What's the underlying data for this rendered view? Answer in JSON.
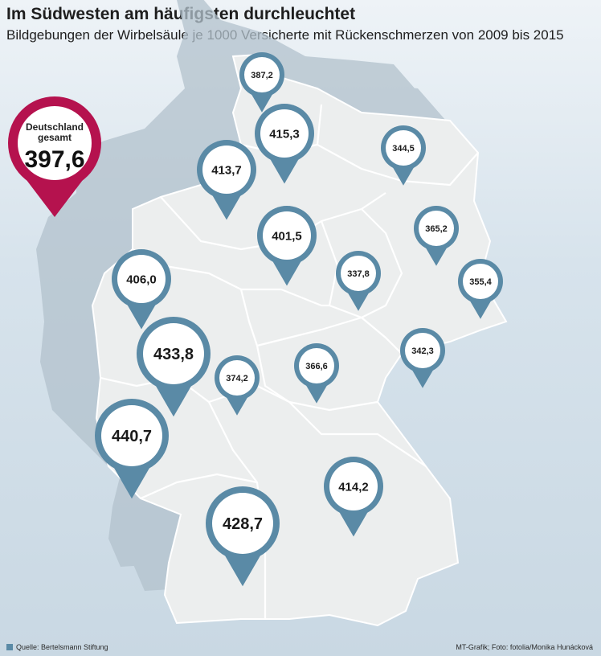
{
  "title": "Im Südwesten am häufigsten durchleuchtet",
  "subtitle": "Bildgebungen der Wirbelsäule je 1000 Versicherte mit Rückenschmerzen von 2009 bis 2015",
  "national": {
    "label_line1": "Deutschland",
    "label_line2": "gesamt",
    "value": "397,6",
    "color": "#b5124e"
  },
  "pin_color": "#5a8aa6",
  "map_fill": "#eceeee",
  "markers": [
    {
      "region": "Schleswig-Holstein",
      "value": "387,2",
      "size": "small"
    },
    {
      "region": "Hamburg",
      "value": "415,3",
      "size": "medium"
    },
    {
      "region": "Mecklenburg-Vorpommern",
      "value": "344,5",
      "size": "small"
    },
    {
      "region": "Bremen",
      "value": "413,7",
      "size": "medium"
    },
    {
      "region": "Niedersachsen",
      "value": "401,5",
      "size": "medium"
    },
    {
      "region": "Berlin",
      "value": "365,2",
      "size": "small"
    },
    {
      "region": "Sachsen-Anhalt",
      "value": "337,8",
      "size": "small"
    },
    {
      "region": "Brandenburg",
      "value": "355,4",
      "size": "small"
    },
    {
      "region": "Nordrhein-Westfalen",
      "value": "406,0",
      "size": "medium"
    },
    {
      "region": "Hessen (West)",
      "value": "433,8",
      "size": "large"
    },
    {
      "region": "Hessen",
      "value": "374,2",
      "size": "small"
    },
    {
      "region": "Thüringen",
      "value": "366,6",
      "size": "small"
    },
    {
      "region": "Sachsen",
      "value": "342,3",
      "size": "small"
    },
    {
      "region": "Saarland",
      "value": "440,7",
      "size": "large"
    },
    {
      "region": "Bayern",
      "value": "414,2",
      "size": "medium"
    },
    {
      "region": "Baden-Württemberg",
      "value": "428,7",
      "size": "large"
    }
  ],
  "footer": {
    "source": "Quelle: Bertelsmann Stiftung",
    "credit": "MT-Grafik; Foto: fotolia/Monika Hunácková"
  }
}
